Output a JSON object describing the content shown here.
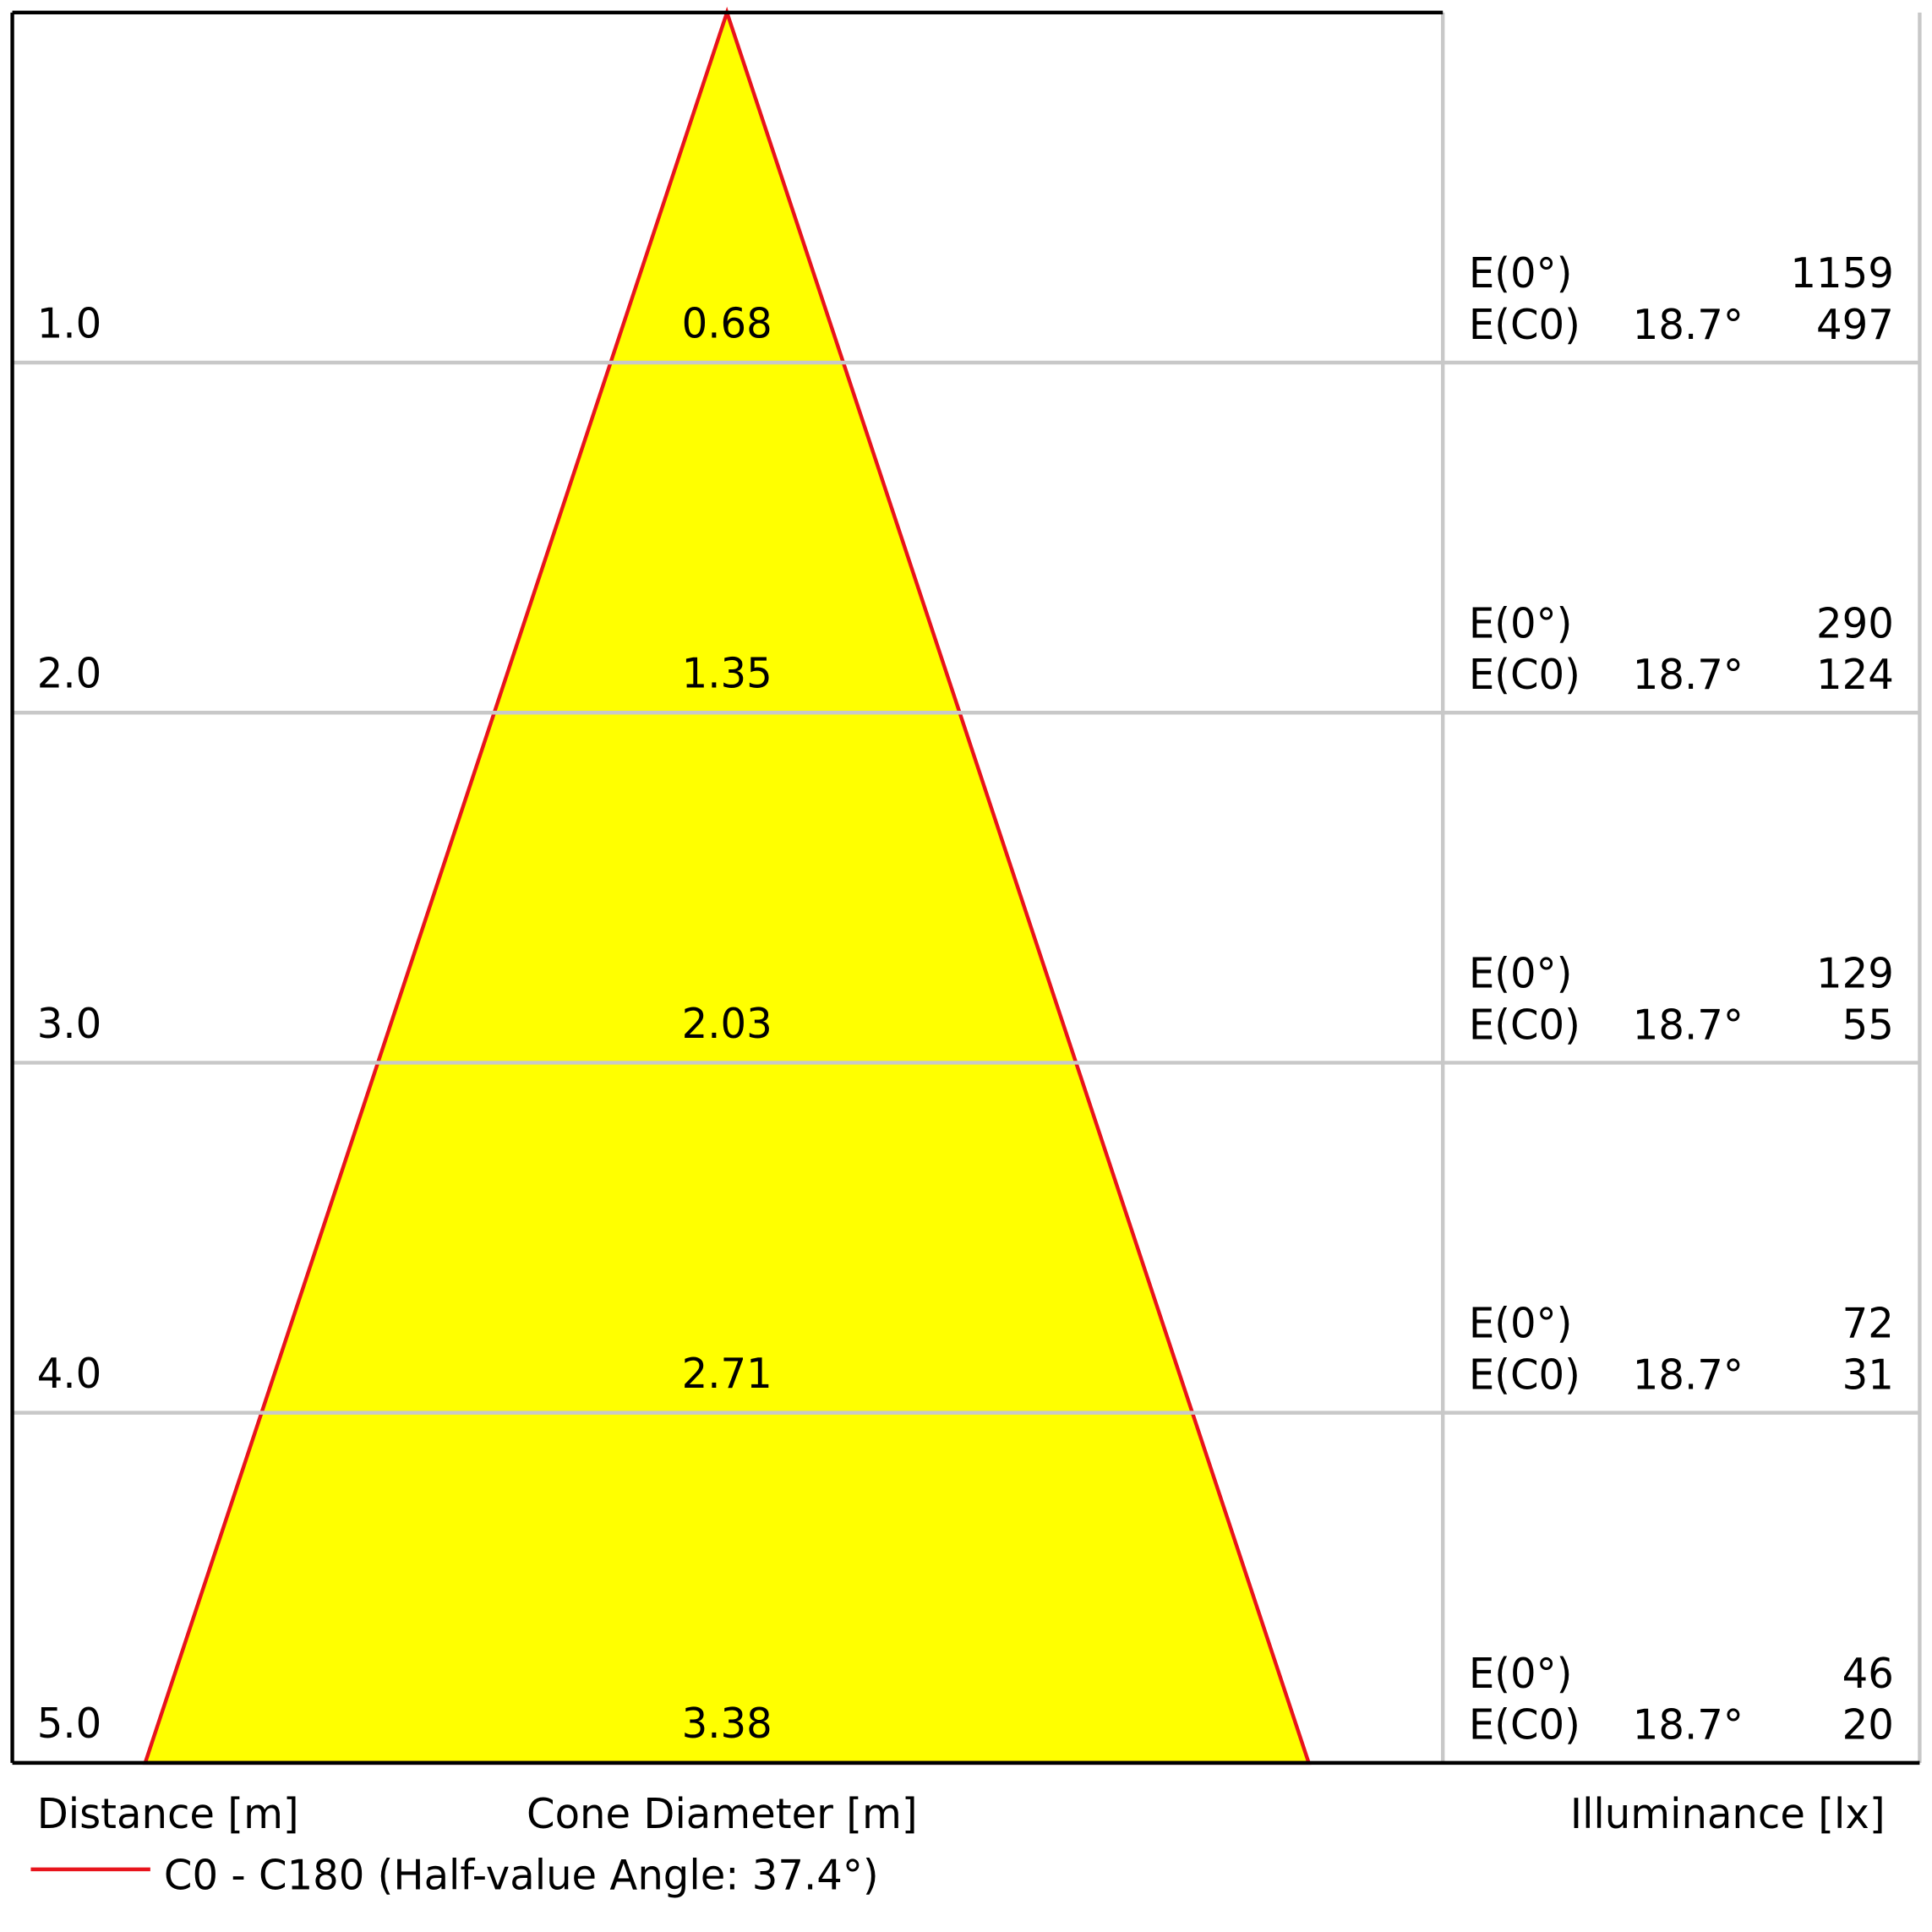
{
  "chart_data": {
    "type": "cone",
    "distances": [
      {
        "value": 1,
        "label": "1.0"
      },
      {
        "value": 2,
        "label": "2.0"
      },
      {
        "value": 3,
        "label": "3.0"
      },
      {
        "value": 4,
        "label": "4.0"
      },
      {
        "value": 5,
        "label": "5.0"
      }
    ],
    "ylim": [
      0,
      5
    ],
    "diameters": [
      0.68,
      1.35,
      2.03,
      2.71,
      3.38
    ],
    "e0_label": "E(0°)",
    "ec0_label": "E(C0)",
    "angle_label": "18.7°",
    "e0_values": [
      1159,
      290,
      129,
      72,
      46
    ],
    "ec0_values": [
      497,
      124,
      55,
      31,
      20
    ],
    "distance_axis_label": "Distance [m]",
    "diameter_axis_label": "Cone Diameter [m]",
    "illuminance_axis_label": "Illuminance [lx]",
    "series": [
      {
        "name": "C0 - C180 (Half-value Angle: 37.4°)",
        "color": "#e8141c",
        "fill": "#ffff00"
      }
    ]
  }
}
